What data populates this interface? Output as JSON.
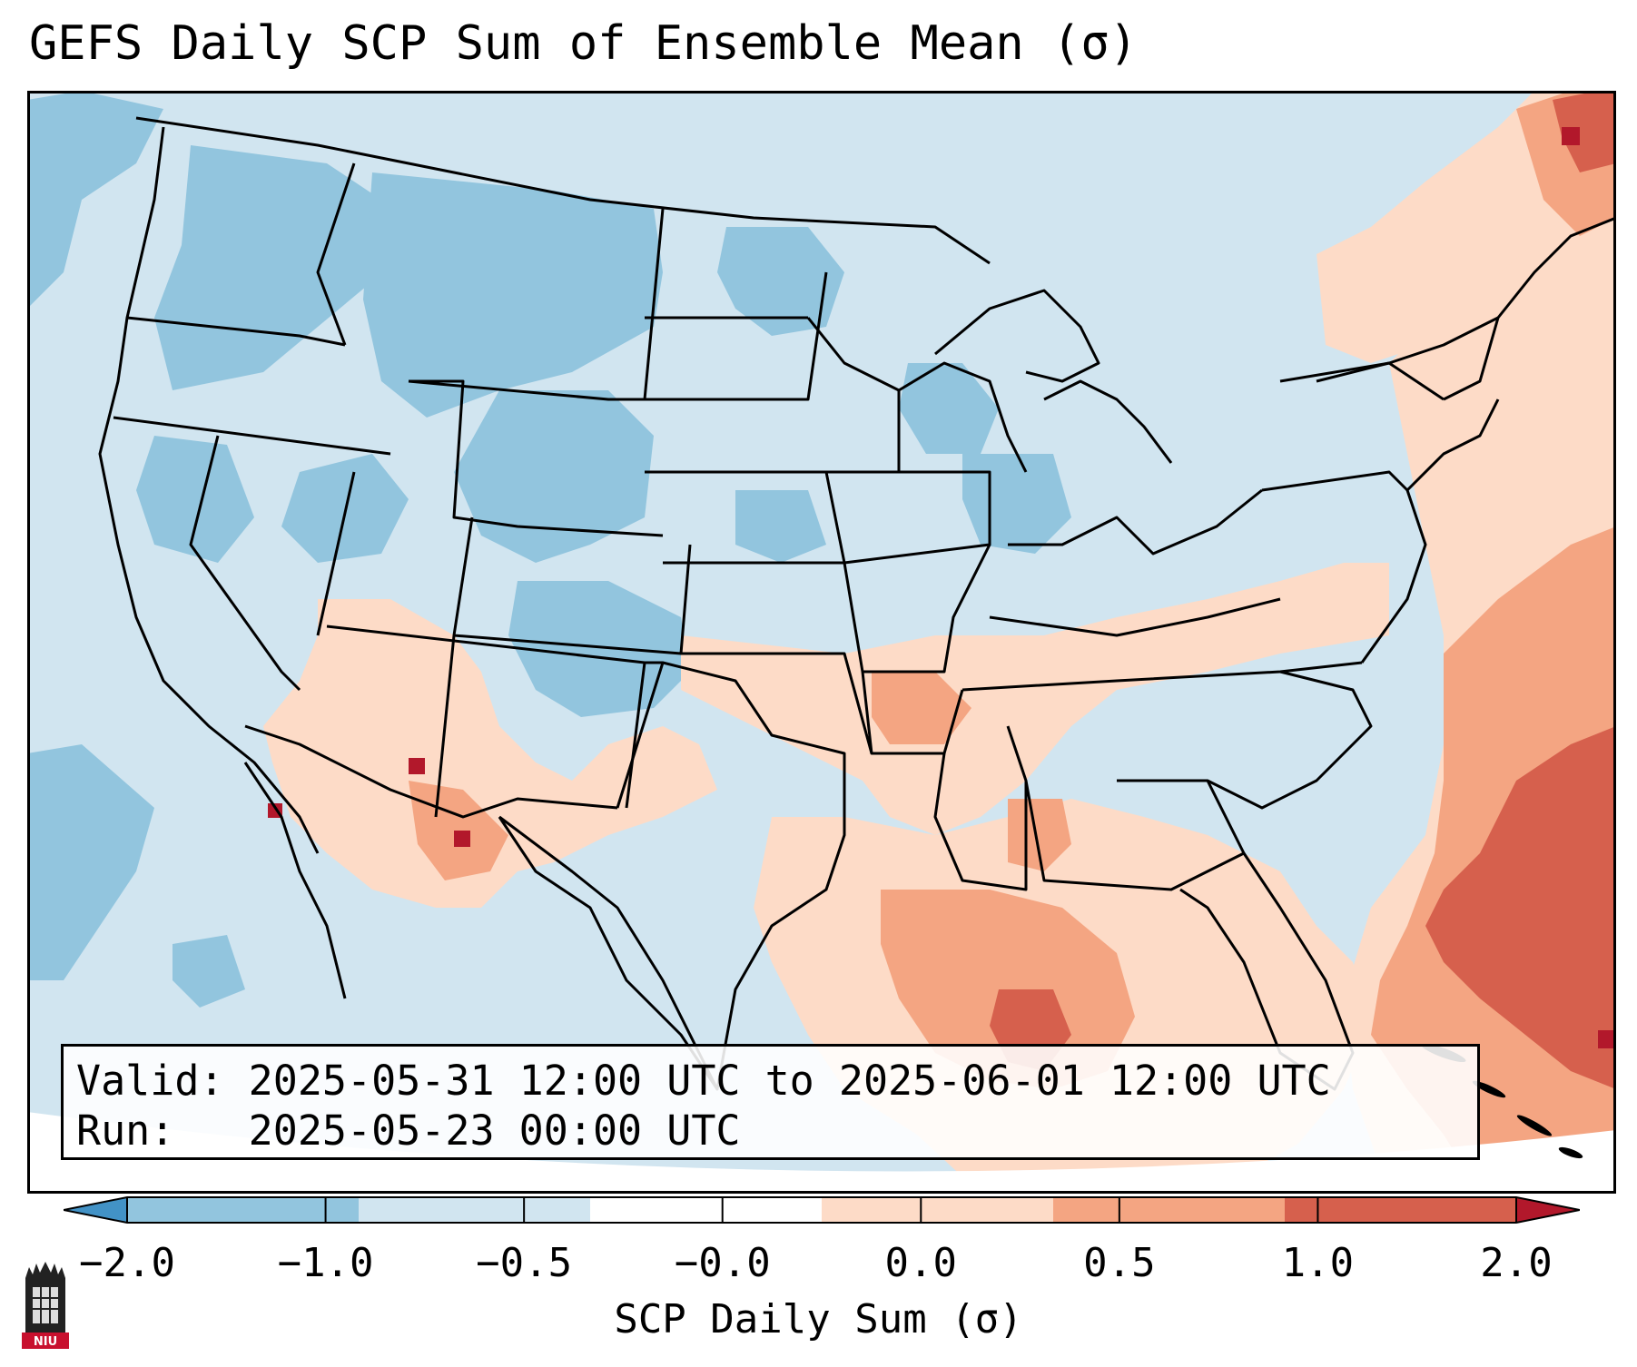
{
  "title": "GEFS Daily SCP Sum of Ensemble Mean (σ)",
  "info": {
    "valid_label": "Valid:",
    "valid_value": "2025-05-31 12:00 UTC to 2025-06-01 12:00 UTC",
    "run_label": "Run:",
    "run_value": "2025-05-23 00:00 UTC"
  },
  "colorbar": {
    "label": "SCP Daily Sum (σ)",
    "ticks": [
      "−2.0",
      "−1.0",
      "−0.5",
      "−0.0",
      "0.0",
      "0.5",
      "1.0",
      "2.0"
    ],
    "colors": [
      "#4292c6",
      "#92c5de",
      "#d1e5f0",
      "#ffffff",
      "#fddbc7",
      "#f4a582",
      "#d6604d",
      "#b2182b"
    ]
  },
  "map": {
    "region": "Continental United States",
    "field_colors": {
      "strong_negative": "#92c5de",
      "weak_negative": "#d1e5f0",
      "weak_positive": "#fddbc7",
      "moderate_positive": "#f4a582",
      "strong_positive": "#d6604d",
      "extreme_positive": "#b2182b"
    }
  },
  "logo": {
    "text": "NIU",
    "icon": "niu-tower-icon"
  }
}
